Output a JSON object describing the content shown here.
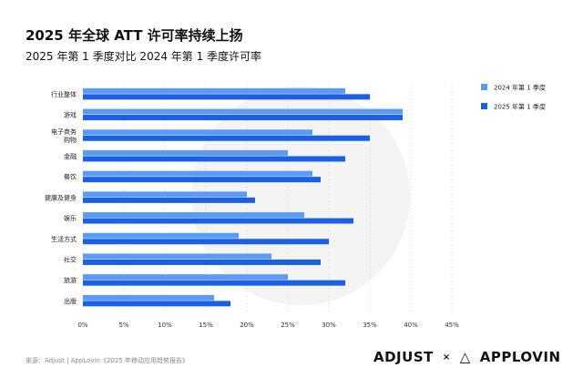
{
  "title": "2025 年全球 ATT 许可率持续上扬",
  "subtitle": "2025 年第 1 季度对比 2024 年第 1 季度许可率",
  "source": "来源：Adjust | AppLovin《2025 年移动应用趋势报告》",
  "logos": {
    "adjust": "ADJUST",
    "times": "×",
    "applovin": "APPLOVIN"
  },
  "chart_data": {
    "type": "bar",
    "orientation": "horizontal",
    "categories": [
      "行业整体",
      "游戏",
      "电子商务\n购物",
      "金融",
      "餐饮",
      "健康及健身",
      "娱乐",
      "生活方式",
      "社交",
      "旅游",
      "出版"
    ],
    "series": [
      {
        "name": "2024 年第 1 季度",
        "color": "#5A9BF6",
        "values": [
          32,
          39,
          28,
          25,
          28,
          20,
          27,
          19,
          23,
          25,
          16
        ]
      },
      {
        "name": "2025 年第 1 季度",
        "color": "#1A5FE6",
        "values": [
          35,
          39,
          35,
          32,
          29,
          21,
          33,
          30,
          29,
          32,
          18
        ]
      }
    ],
    "xlim": [
      0,
      45
    ],
    "xticks": [
      "0%",
      "5%",
      "10%",
      "15%",
      "20%",
      "25%",
      "30%",
      "35%",
      "40%",
      "45%"
    ],
    "grid": true,
    "legend": "top-right"
  }
}
